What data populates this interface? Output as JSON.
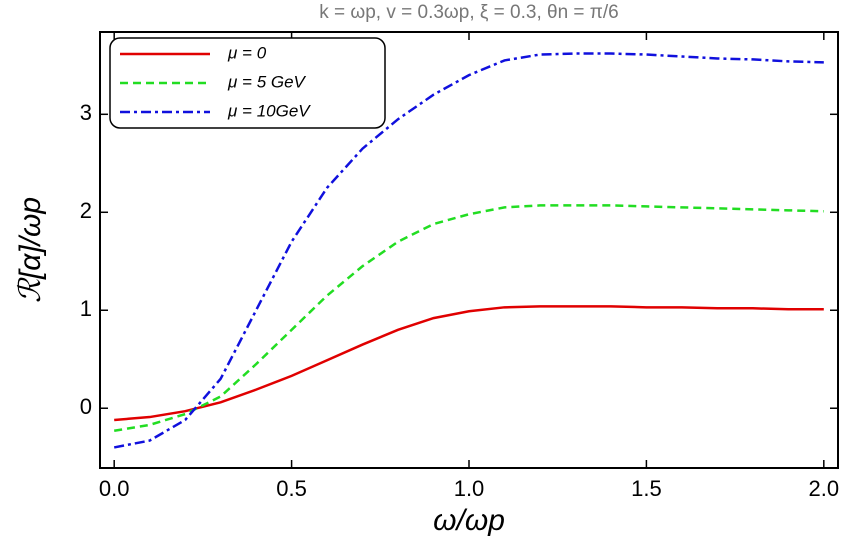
{
  "chart_data": {
    "type": "line",
    "title": "k = ωp, v = 0.3ωp, ξ = 0.3, θn = π/6",
    "x_label": "ω/ωp",
    "y_label": "ℛ[α]/ωp",
    "x": [
      0,
      0.1,
      0.2,
      0.3,
      0.4,
      0.5,
      0.6,
      0.7,
      0.8,
      0.9,
      1.0,
      1.1,
      1.2,
      1.3,
      1.4,
      1.5,
      1.6,
      1.7,
      1.8,
      1.9,
      2.0
    ],
    "series": [
      {
        "name": "μ = 0",
        "color": "#e00000",
        "style": "solid",
        "values": [
          -0.12,
          -0.09,
          -0.03,
          0.06,
          0.19,
          0.33,
          0.49,
          0.65,
          0.8,
          0.92,
          0.99,
          1.03,
          1.04,
          1.04,
          1.04,
          1.03,
          1.03,
          1.02,
          1.02,
          1.01,
          1.01
        ]
      },
      {
        "name": "μ = 5 GeV",
        "color": "#22dd22",
        "style": "dashed",
        "values": [
          -0.23,
          -0.17,
          -0.06,
          0.12,
          0.45,
          0.8,
          1.15,
          1.45,
          1.7,
          1.88,
          1.98,
          2.05,
          2.07,
          2.07,
          2.07,
          2.06,
          2.05,
          2.04,
          2.03,
          2.02,
          2.01
        ]
      },
      {
        "name": "μ = 10GeV",
        "color": "#1010dd",
        "style": "dashdot",
        "values": [
          -0.4,
          -0.33,
          -0.12,
          0.3,
          1.0,
          1.7,
          2.25,
          2.65,
          2.95,
          3.2,
          3.4,
          3.55,
          3.61,
          3.62,
          3.62,
          3.61,
          3.59,
          3.57,
          3.56,
          3.54,
          3.53
        ]
      }
    ],
    "xlim": [
      -0.04,
      2.04
    ],
    "ylim": [
      -0.61,
      3.84
    ],
    "xticks": [
      {
        "value": 0,
        "label": "0.0"
      },
      0.5,
      {
        "value": 1,
        "label": "1.0"
      },
      1.5,
      {
        "value": 2,
        "label": "2.0"
      }
    ],
    "yticks": [
      0,
      1,
      2,
      3
    ],
    "legend": "upper-left"
  }
}
